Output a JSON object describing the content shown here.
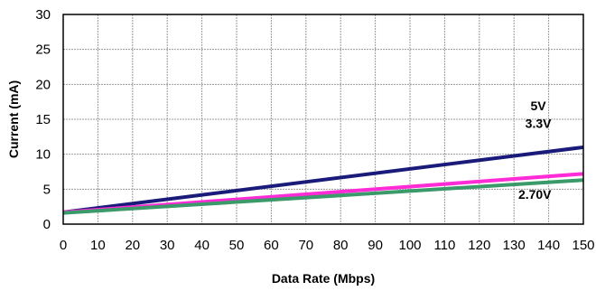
{
  "chart_data": {
    "type": "line",
    "title": "",
    "xlabel": "Data Rate (Mbps)",
    "ylabel": "Current (mA)",
    "xlim": [
      0,
      150
    ],
    "ylim": [
      0,
      30
    ],
    "xticks": [
      0,
      10,
      20,
      30,
      40,
      50,
      60,
      70,
      80,
      90,
      100,
      110,
      120,
      130,
      140,
      150
    ],
    "yticks": [
      0,
      5,
      10,
      15,
      20,
      25,
      30
    ],
    "grid": true,
    "series": [
      {
        "name": "5V",
        "color": "#1a1a7a",
        "x": [
          0,
          150
        ],
        "y": [
          1.7,
          11.0
        ]
      },
      {
        "name": "3.3V",
        "color": "#ff2bd6",
        "x": [
          0,
          150
        ],
        "y": [
          1.7,
          7.2
        ]
      },
      {
        "name": "2.70V",
        "color": "#3a9a6a",
        "x": [
          0,
          150
        ],
        "y": [
          1.6,
          6.3
        ]
      }
    ],
    "annotations": [
      {
        "text": "5V",
        "x": 137,
        "y": 16.3
      },
      {
        "text": "3.3V",
        "x": 137,
        "y": 13.8
      },
      {
        "text": "2.70V",
        "x": 136,
        "y": 3.6
      }
    ]
  }
}
